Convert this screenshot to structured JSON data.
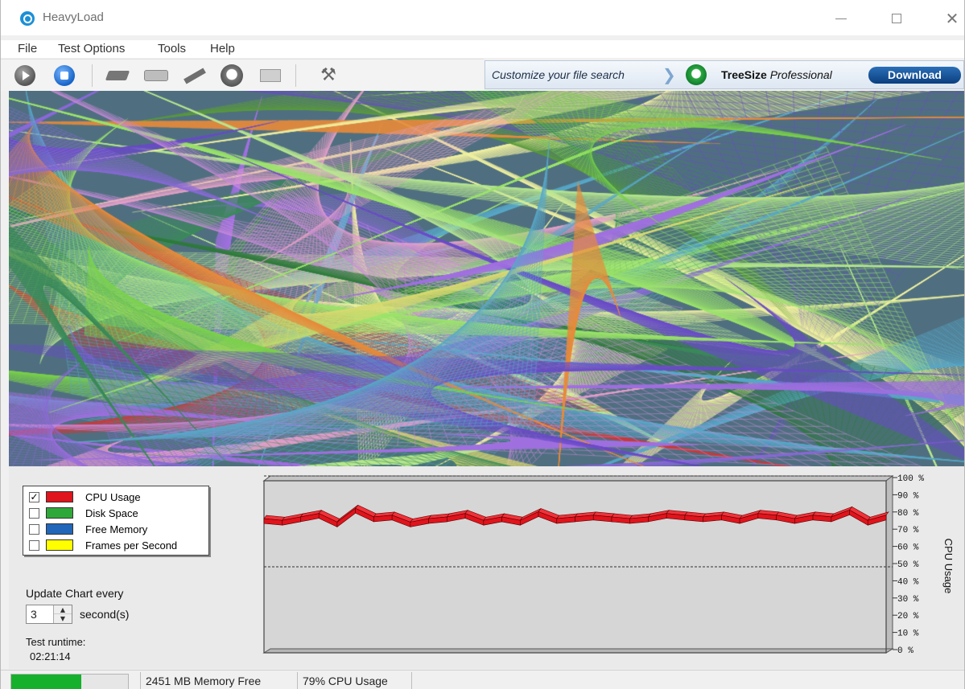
{
  "window": {
    "title": "HeavyLoad"
  },
  "menu": {
    "file": "File",
    "test_options": "Test Options",
    "tools": "Tools",
    "help": "Help"
  },
  "toolbar": {
    "icons": [
      "play-icon",
      "stop-icon",
      "cpu-icon",
      "disk-icon",
      "memory-icon",
      "gpu-icon",
      "network-icon",
      "tools-icon"
    ]
  },
  "ad": {
    "text": "Customize your file search",
    "product_bold": "TreeSize",
    "product_italic": "Professional",
    "button": "Download"
  },
  "legend": {
    "items": [
      {
        "label": "CPU Usage",
        "checked": true,
        "color": "#e0141c"
      },
      {
        "label": "Disk Space",
        "checked": false,
        "color": "#2fa83a"
      },
      {
        "label": "Free Memory",
        "checked": false,
        "color": "#2166b8"
      },
      {
        "label": "Frames per Second",
        "checked": false,
        "color": "#ffff00"
      }
    ],
    "check_mark": "✓"
  },
  "update": {
    "label": "Update Chart every",
    "value": "3",
    "unit": "second(s)"
  },
  "runtime": {
    "label": "Test runtime:",
    "value": "02:21:14"
  },
  "chart_data": {
    "type": "area",
    "series": [
      {
        "name": "CPU Usage",
        "color": "#e0141c",
        "values": [
          78,
          77,
          79,
          81,
          76,
          84,
          79,
          80,
          76,
          78,
          79,
          81,
          77,
          79,
          77,
          82,
          78,
          79,
          80,
          79,
          78,
          79,
          81,
          80,
          79,
          80,
          78,
          81,
          80,
          78,
          80,
          79,
          83,
          77,
          80
        ]
      }
    ],
    "ylabel": "CPU Usage",
    "ylim": [
      0,
      100
    ],
    "ytick_labels": [
      "100 %",
      "90 %",
      "80 %",
      "70 %",
      "60 %",
      "50 %",
      "40 %",
      "30 %",
      "20 %",
      "10 %",
      "0 %"
    ],
    "reference_lines": [
      100,
      50
    ],
    "grid": false
  },
  "status": {
    "progress_fraction": 0.6,
    "progress_color": "#16b02c",
    "memory": "2451 MB Memory Free",
    "cpu": "79% CPU Usage"
  }
}
